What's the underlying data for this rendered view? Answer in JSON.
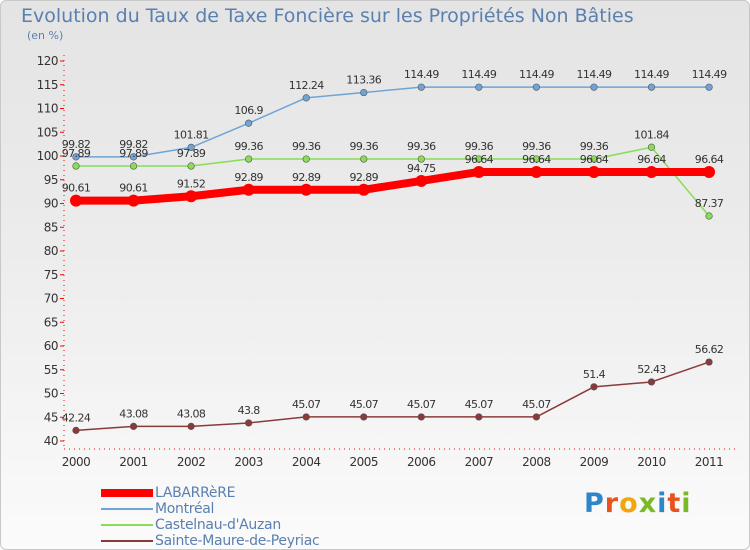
{
  "header": {
    "title": "Evolution du Taux de Taxe Foncière sur les Propriétés Non Bâties",
    "subtitle": "(en %)"
  },
  "logo": {
    "letters": [
      "P",
      "r",
      "o",
      "x",
      "i",
      "t",
      "i"
    ],
    "colors": [
      "#2e86c8",
      "#e8531d",
      "#f2a60c",
      "#7ab928",
      "#2e86c8",
      "#e8531d",
      "#7ab928"
    ]
  },
  "chart_data": {
    "type": "line",
    "title": "Evolution du Taux de Taxe Foncière sur les Propriétés Non Bâties",
    "ylabel": "(en %)",
    "categories": [
      "2000",
      "2001",
      "2002",
      "2003",
      "2004",
      "2005",
      "2006",
      "2007",
      "2008",
      "2009",
      "2010",
      "2011"
    ],
    "ylim": [
      40,
      120
    ],
    "yticks": [
      40,
      45,
      50,
      55,
      60,
      65,
      70,
      75,
      80,
      85,
      90,
      95,
      100,
      105,
      110,
      115,
      120
    ],
    "grid": false,
    "legend_position": "bottom-left",
    "series": [
      {
        "name": "LABARRèRE",
        "color": "#ff0000",
        "values": [
          90.61,
          90.61,
          91.52,
          92.89,
          92.89,
          92.89,
          94.75,
          96.64,
          96.64,
          96.64,
          96.64,
          96.64
        ],
        "labels": [
          "90.61",
          "90.61",
          "91.52",
          "92.89",
          "92.89",
          "92.89",
          "94.75",
          "96.64",
          "96.64",
          "96.64",
          "96.64",
          "96.64"
        ]
      },
      {
        "name": "Montréal",
        "color": "#6fa4d8",
        "values": [
          99.82,
          99.82,
          101.81,
          106.9,
          112.24,
          113.36,
          114.49,
          114.49,
          114.49,
          114.49,
          114.49,
          114.49
        ],
        "labels": [
          "99.82",
          "99.82",
          "101.81",
          "106.9",
          "112.24",
          "113.36",
          "114.49",
          "114.49",
          "114.49",
          "114.49",
          "114.49",
          "114.49"
        ]
      },
      {
        "name": "Castelnau-d'Auzan",
        "color": "#88dd55",
        "values": [
          97.89,
          97.89,
          97.89,
          99.36,
          99.36,
          99.36,
          99.36,
          99.36,
          99.36,
          99.36,
          101.84,
          87.37
        ],
        "labels": [
          "97.89",
          "97.89",
          "97.89",
          "99.36",
          "99.36",
          "99.36",
          "99.36",
          "99.36",
          "99.36",
          "99.36",
          "101.84",
          "87.37"
        ]
      },
      {
        "name": "Sainte-Maure-de-Peyriac",
        "color": "#8b3a3a",
        "values": [
          42.24,
          43.08,
          43.08,
          43.8,
          45.07,
          45.07,
          45.07,
          45.07,
          45.07,
          51.4,
          52.43,
          56.62
        ],
        "labels": [
          "42.24",
          "43.08",
          "43.08",
          "43.8",
          "45.07",
          "45.07",
          "45.07",
          "45.07",
          "45.07",
          "51.4",
          "52.43",
          "56.62"
        ]
      }
    ]
  }
}
